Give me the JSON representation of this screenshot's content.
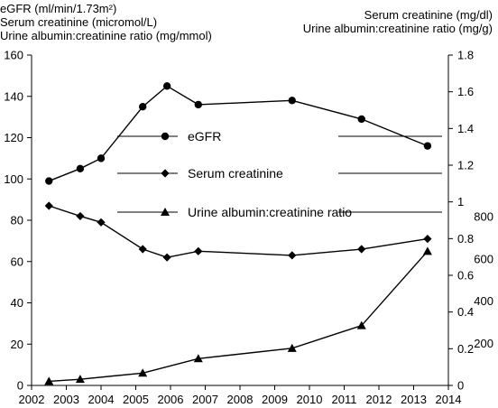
{
  "header": {
    "left_lines": [
      "eGFR (ml/min/1.73m²)",
      "Serum creatinine (micromol/L)",
      "Urine albumin:creatinine ratio (mg/mmol)"
    ],
    "right_lines": [
      "Serum creatinine (mg/dl)",
      "Urine albumin:creatinine ratio (mg/g)"
    ]
  },
  "chart_data": {
    "type": "line",
    "title": "",
    "x_ticks": [
      "2002",
      "2003",
      "2004",
      "2005",
      "2006",
      "2007",
      "2008",
      "2009",
      "2010",
      "2011",
      "2012",
      "2013",
      "2014"
    ],
    "xlim": [
      2002,
      2014
    ],
    "left_axis": {
      "ticks": [
        "0",
        "20",
        "40",
        "60",
        "80",
        "100",
        "120",
        "140",
        "160"
      ],
      "ylim": [
        0,
        160
      ]
    },
    "right_axis_creatinine": {
      "ticks": [
        "1",
        "1.2",
        "1.4",
        "1.6",
        "1.8"
      ],
      "ylim": [
        0,
        1.8
      ]
    },
    "right_axis_acr": {
      "ticks": [
        "0",
        "0.2",
        "0.4",
        "0.6",
        "0.8",
        "200",
        "400",
        "600",
        "800"
      ]
    },
    "series": [
      {
        "name": "eGFR",
        "marker": "circle",
        "x": [
          2002.5,
          2003.4,
          2004.0,
          2005.2,
          2005.9,
          2006.8,
          2009.5,
          2011.5,
          2013.4
        ],
        "y": [
          99,
          105,
          110,
          135,
          145,
          136,
          138,
          129,
          116
        ]
      },
      {
        "name": "Serum creatinine",
        "marker": "diamond",
        "x": [
          2002.5,
          2003.4,
          2004.0,
          2005.2,
          2005.9,
          2006.8,
          2009.5,
          2011.5,
          2013.4
        ],
        "y": [
          87,
          82,
          79,
          66,
          62,
          65,
          63,
          66,
          71
        ]
      },
      {
        "name": "Urine albumin:creatinine ratio",
        "marker": "triangle",
        "x": [
          2002.5,
          2003.4,
          2005.2,
          2006.8,
          2009.5,
          2011.5,
          2013.4
        ],
        "y": [
          2,
          3,
          6,
          13,
          18,
          29,
          65
        ]
      }
    ],
    "legend": {
      "placement": "center",
      "entries": [
        "eGFR",
        "Serum creatinine",
        "Urine albumin:creatinine ratio"
      ]
    },
    "grid": false
  }
}
